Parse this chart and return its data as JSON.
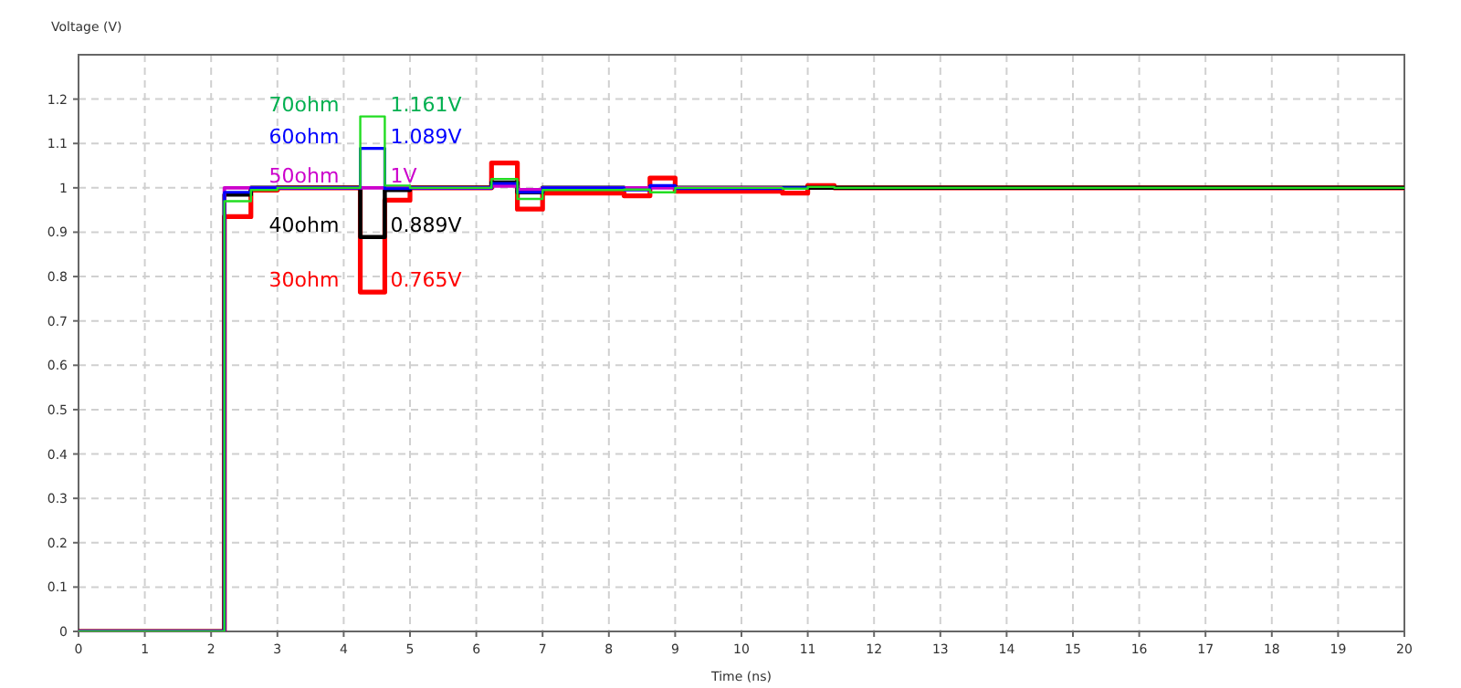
{
  "chart_data": {
    "type": "step",
    "xlabel": "Time (ns)",
    "ylabel": "Voltage (V)",
    "x": [
      0,
      2.2,
      2.6,
      3.0,
      4.25,
      4.62,
      5.0,
      6.23,
      6.62,
      7.0,
      8.23,
      8.62,
      9.0,
      10.62,
      11.0,
      11.4,
      20
    ],
    "series": [
      {
        "name": "30ohm",
        "color": "#ff0000",
        "values": [
          0,
          0.935,
          0.995,
          1,
          0.765,
          0.972,
          1,
          1.056,
          0.952,
          0.988,
          0.982,
          1.022,
          0.992,
          0.988,
          1.005,
          1,
          1
        ],
        "value_labels": [
          null,
          null,
          null,
          null,
          "0.765V",
          null,
          null,
          null,
          null,
          null,
          null,
          null,
          null,
          null,
          null,
          null,
          null
        ]
      },
      {
        "name": "40ohm",
        "color": "#000000",
        "values": [
          0,
          0.985,
          1,
          1,
          0.889,
          0.995,
          1,
          1.012,
          0.99,
          1,
          0.998,
          1.002,
          1,
          1,
          1,
          1,
          1
        ],
        "value_labels": [
          null,
          null,
          null,
          null,
          "0.889V",
          null,
          null,
          null,
          null,
          null,
          null,
          null,
          null,
          null,
          null,
          null,
          null
        ]
      },
      {
        "name": "50ohm",
        "color": "#cc00cc",
        "values": [
          0,
          1,
          1,
          1,
          1,
          1,
          1,
          1.004,
          0.996,
          1,
          1,
          1,
          1,
          1,
          null,
          null,
          null
        ],
        "value_labels": [
          null,
          null,
          null,
          null,
          "1V",
          null,
          null,
          null,
          null,
          null,
          null,
          null,
          null,
          null,
          null,
          null,
          null
        ]
      },
      {
        "name": "60ohm",
        "color": "#0000ff",
        "values": [
          0,
          0.99,
          1,
          1,
          1.089,
          0.998,
          1,
          1.01,
          0.99,
          1,
          0.995,
          1.005,
          0.998,
          1,
          1.002,
          null,
          null
        ],
        "value_labels": [
          null,
          null,
          null,
          null,
          "1.089V",
          null,
          null,
          null,
          null,
          null,
          null,
          null,
          null,
          null,
          null,
          null,
          null
        ]
      },
      {
        "name": "70ohm",
        "color": "#22dd22",
        "values": [
          0,
          0.97,
          0.995,
          1,
          1.161,
          1.005,
          1,
          1.02,
          0.975,
          0.995,
          0.996,
          0.99,
          1,
          0.998,
          1.002,
          1,
          1
        ],
        "value_labels": [
          null,
          null,
          null,
          null,
          "1.161V",
          null,
          null,
          null,
          null,
          null,
          null,
          null,
          null,
          null,
          null,
          null,
          null
        ]
      }
    ],
    "xlim": [
      0,
      20
    ],
    "xticks": [
      0,
      1,
      2,
      3,
      4,
      5,
      6,
      7,
      8,
      9,
      10,
      11,
      12,
      13,
      14,
      15,
      16,
      17,
      18,
      19,
      20
    ],
    "ylim": [
      0,
      1.3
    ],
    "yticks": [
      0,
      0.1,
      0.2,
      0.3,
      0.4,
      0.5,
      0.6,
      0.7,
      0.8,
      0.9,
      1,
      1.1,
      1.2
    ],
    "grid": true,
    "line_style": "solid"
  }
}
